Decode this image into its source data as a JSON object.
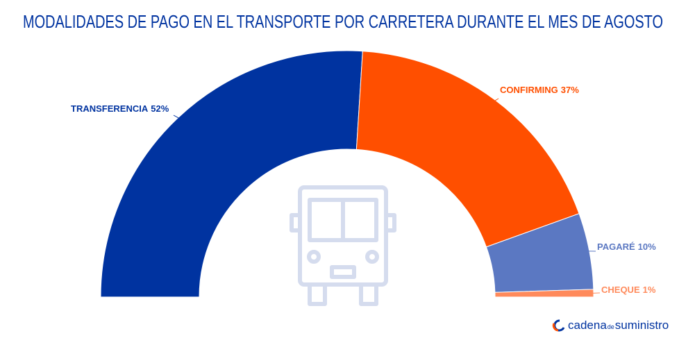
{
  "chart_data": {
    "type": "pie",
    "shape": "half-donut",
    "title": "MODALIDADES DE PAGO EN EL TRANSPORTE POR CARRETERA DURANTE EL MES DE AGOSTO",
    "categories": [
      "TRANSFERENCIA",
      "CONFIRMING",
      "PAGARÉ",
      "CHEQUE"
    ],
    "values": [
      52,
      37,
      10,
      1
    ],
    "value_labels": [
      "52%",
      "37%",
      "10%",
      "1%"
    ],
    "colors": [
      "#0033a0",
      "#ff4f00",
      "#5b78c2",
      "#ff8a5b"
    ]
  },
  "footer": {
    "brand": [
      "cadena",
      "de",
      "suministro"
    ]
  }
}
